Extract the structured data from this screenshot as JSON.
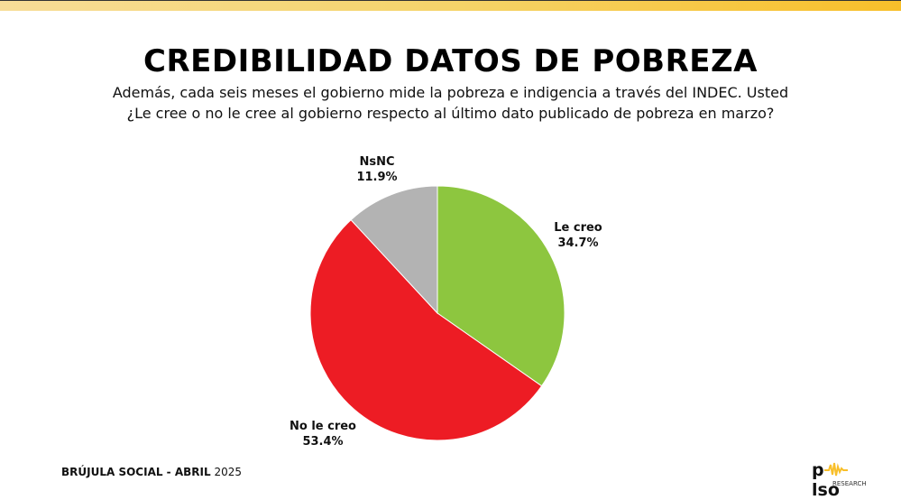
{
  "title": "CREDIBILIDAD DATOS DE POBREZA",
  "subtitle_line1": "Además, cada seis meses el gobierno mide la pobreza e indigencia a través del INDEC. Usted",
  "subtitle_line2": "¿Le cree o no le cree al gobierno respecto al último dato publicado de pobreza en marzo?",
  "chart_data": {
    "type": "pie",
    "title": "CREDIBILIDAD DATOS DE POBREZA",
    "categories": [
      "Le creo",
      "No le creo",
      "NsNC"
    ],
    "values": [
      34.7,
      53.4,
      11.9
    ],
    "labels": [
      "34.7%",
      "53.4%",
      "11.9%"
    ],
    "colors": [
      "#8dc63f",
      "#ed1c24",
      "#b3b3b3"
    ],
    "start": "top, clockwise",
    "legend": "none (direct labels)"
  },
  "footer": {
    "bold": "BRÚJULA SOCIAL - ABRIL",
    "normal": " 2025"
  },
  "logo": {
    "text": "pulso",
    "sub": "RESEARCH",
    "accent": "#f8bf2a"
  }
}
